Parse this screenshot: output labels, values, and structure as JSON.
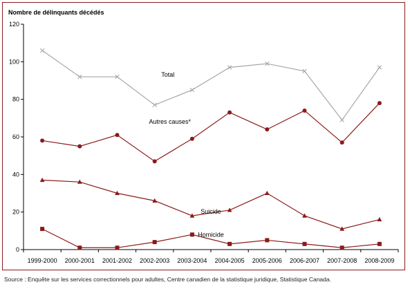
{
  "source_note": "Source : Enquête sur les services correctionnels pour adultes, Centre canadien de la statistique juridique, Statistique Canada.",
  "chart_data": {
    "type": "line",
    "ylabel": "Nombre de délinquants décédés",
    "xlabel": "",
    "ylim": [
      0,
      120
    ],
    "yticks": [
      0,
      20,
      40,
      60,
      80,
      100,
      120
    ],
    "grid": false,
    "legend": "inline labels",
    "categories": [
      "1999-2000",
      "2000-2001",
      "2001-2002",
      "2002-2003",
      "2003-2004",
      "2004-2005",
      "2005-2006",
      "2006-2007",
      "2007-2008",
      "2008-2009"
    ],
    "series": [
      {
        "name": "Total",
        "marker": "x",
        "color": "#a6a6a6",
        "values": [
          106,
          92,
          92,
          77,
          85,
          97,
          99,
          95,
          69,
          97
        ]
      },
      {
        "name": "Autres causes*",
        "marker": "circle",
        "color": "#8b1a1a",
        "values": [
          58,
          55,
          61,
          47,
          59,
          73,
          64,
          74,
          57,
          78
        ]
      },
      {
        "name": "Suicide",
        "marker": "triangle",
        "color": "#8b1a1a",
        "values": [
          37,
          36,
          30,
          26,
          18,
          21,
          30,
          18,
          11,
          16
        ]
      },
      {
        "name": "Homicide",
        "marker": "square",
        "color": "#8b1a1a",
        "values": [
          11,
          1,
          1,
          4,
          8,
          3,
          5,
          3,
          1,
          3
        ]
      }
    ]
  }
}
